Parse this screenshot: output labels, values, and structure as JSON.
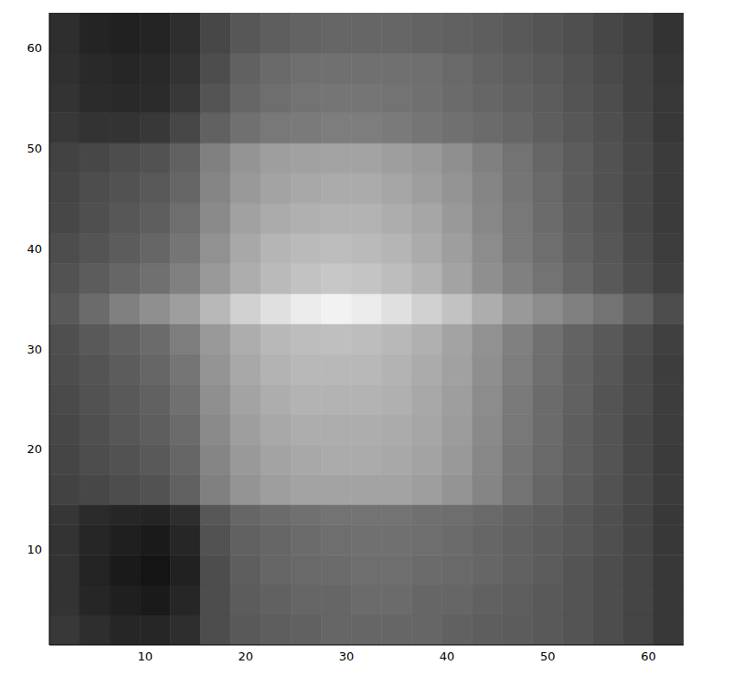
{
  "chart_data": {
    "type": "heatmap",
    "color": "gray",
    "grid": false,
    "xlim": [
      0.5,
      63.5
    ],
    "ylim": [
      0.5,
      63.5
    ],
    "xticks": [
      10,
      20,
      30,
      40,
      50,
      60
    ],
    "yticks": [
      10,
      20,
      30,
      40,
      50,
      60
    ],
    "zlim": [
      0,
      1
    ],
    "x_edges": [
      0.5,
      3.5,
      6.5,
      9.5,
      12.5,
      15.5,
      18.5,
      21.5,
      24.5,
      27.5,
      30.5,
      33.5,
      36.5,
      39.5,
      42.5,
      45.5,
      48.5,
      51.5,
      54.5,
      57.5,
      60.5,
      63.5
    ],
    "y_edges": [
      0.5,
      3.5,
      6.5,
      9.5,
      12.5,
      14.5,
      17.5,
      20.5,
      23.5,
      26.5,
      29.5,
      32.5,
      35.5,
      38.5,
      41.5,
      44.5,
      47.5,
      50.5,
      53.5,
      56.5,
      59.5,
      63.5
    ],
    "cells": [
      [
        0.22,
        0.18,
        0.15,
        0.15,
        0.18,
        0.3,
        0.35,
        0.37,
        0.38,
        0.4,
        0.4,
        0.4,
        0.4,
        0.38,
        0.37,
        0.36,
        0.35,
        0.33,
        0.3,
        0.27,
        0.22
      ],
      [
        0.2,
        0.15,
        0.12,
        0.1,
        0.15,
        0.3,
        0.36,
        0.38,
        0.4,
        0.4,
        0.42,
        0.42,
        0.4,
        0.4,
        0.38,
        0.37,
        0.35,
        0.33,
        0.3,
        0.27,
        0.22
      ],
      [
        0.2,
        0.14,
        0.1,
        0.08,
        0.13,
        0.3,
        0.37,
        0.4,
        0.41,
        0.42,
        0.43,
        0.43,
        0.42,
        0.41,
        0.4,
        0.38,
        0.36,
        0.33,
        0.3,
        0.27,
        0.22
      ],
      [
        0.2,
        0.15,
        0.12,
        0.1,
        0.15,
        0.32,
        0.38,
        0.4,
        0.42,
        0.43,
        0.44,
        0.44,
        0.43,
        0.42,
        0.4,
        0.38,
        0.36,
        0.34,
        0.31,
        0.27,
        0.22
      ],
      [
        0.21,
        0.17,
        0.15,
        0.14,
        0.18,
        0.34,
        0.4,
        0.42,
        0.44,
        0.45,
        0.45,
        0.45,
        0.44,
        0.43,
        0.41,
        0.39,
        0.37,
        0.34,
        0.31,
        0.27,
        0.22
      ],
      [
        0.26,
        0.28,
        0.3,
        0.32,
        0.38,
        0.5,
        0.58,
        0.62,
        0.64,
        0.64,
        0.64,
        0.64,
        0.62,
        0.58,
        0.52,
        0.45,
        0.4,
        0.36,
        0.32,
        0.28,
        0.23
      ],
      [
        0.27,
        0.3,
        0.32,
        0.35,
        0.4,
        0.52,
        0.6,
        0.64,
        0.66,
        0.67,
        0.67,
        0.66,
        0.64,
        0.6,
        0.53,
        0.46,
        0.41,
        0.37,
        0.33,
        0.28,
        0.23
      ],
      [
        0.28,
        0.31,
        0.34,
        0.37,
        0.42,
        0.54,
        0.62,
        0.66,
        0.68,
        0.68,
        0.68,
        0.67,
        0.65,
        0.61,
        0.54,
        0.47,
        0.42,
        0.37,
        0.33,
        0.28,
        0.24
      ],
      [
        0.29,
        0.32,
        0.35,
        0.38,
        0.44,
        0.56,
        0.64,
        0.68,
        0.7,
        0.7,
        0.7,
        0.69,
        0.66,
        0.62,
        0.55,
        0.48,
        0.42,
        0.38,
        0.33,
        0.29,
        0.24
      ],
      [
        0.3,
        0.33,
        0.36,
        0.4,
        0.46,
        0.58,
        0.66,
        0.7,
        0.72,
        0.72,
        0.72,
        0.7,
        0.67,
        0.63,
        0.56,
        0.49,
        0.43,
        0.38,
        0.34,
        0.29,
        0.24
      ],
      [
        0.31,
        0.35,
        0.38,
        0.42,
        0.49,
        0.6,
        0.68,
        0.72,
        0.74,
        0.75,
        0.74,
        0.72,
        0.69,
        0.64,
        0.57,
        0.5,
        0.44,
        0.39,
        0.35,
        0.3,
        0.25
      ],
      [
        0.35,
        0.42,
        0.5,
        0.56,
        0.62,
        0.72,
        0.82,
        0.88,
        0.92,
        0.95,
        0.92,
        0.88,
        0.82,
        0.76,
        0.68,
        0.6,
        0.55,
        0.5,
        0.45,
        0.38,
        0.3
      ],
      [
        0.32,
        0.36,
        0.4,
        0.44,
        0.5,
        0.6,
        0.68,
        0.73,
        0.76,
        0.78,
        0.77,
        0.74,
        0.7,
        0.64,
        0.56,
        0.5,
        0.45,
        0.4,
        0.35,
        0.3,
        0.25
      ],
      [
        0.3,
        0.33,
        0.36,
        0.4,
        0.46,
        0.57,
        0.66,
        0.71,
        0.73,
        0.74,
        0.73,
        0.71,
        0.67,
        0.62,
        0.55,
        0.48,
        0.43,
        0.38,
        0.34,
        0.29,
        0.24
      ],
      [
        0.28,
        0.31,
        0.34,
        0.37,
        0.43,
        0.54,
        0.63,
        0.67,
        0.69,
        0.7,
        0.7,
        0.68,
        0.65,
        0.6,
        0.53,
        0.47,
        0.42,
        0.37,
        0.33,
        0.28,
        0.23
      ],
      [
        0.27,
        0.3,
        0.32,
        0.35,
        0.4,
        0.52,
        0.6,
        0.64,
        0.66,
        0.67,
        0.67,
        0.65,
        0.62,
        0.58,
        0.52,
        0.46,
        0.41,
        0.36,
        0.32,
        0.28,
        0.23
      ],
      [
        0.26,
        0.28,
        0.3,
        0.32,
        0.38,
        0.5,
        0.58,
        0.62,
        0.63,
        0.64,
        0.64,
        0.62,
        0.6,
        0.56,
        0.5,
        0.45,
        0.4,
        0.36,
        0.32,
        0.28,
        0.23
      ],
      [
        0.22,
        0.2,
        0.2,
        0.22,
        0.28,
        0.38,
        0.44,
        0.47,
        0.48,
        0.49,
        0.49,
        0.48,
        0.46,
        0.44,
        0.42,
        0.4,
        0.37,
        0.34,
        0.31,
        0.27,
        0.22
      ],
      [
        0.2,
        0.17,
        0.16,
        0.17,
        0.22,
        0.33,
        0.4,
        0.43,
        0.45,
        0.46,
        0.46,
        0.45,
        0.44,
        0.42,
        0.4,
        0.38,
        0.36,
        0.33,
        0.3,
        0.26,
        0.22
      ],
      [
        0.19,
        0.16,
        0.15,
        0.16,
        0.2,
        0.3,
        0.38,
        0.41,
        0.43,
        0.44,
        0.44,
        0.44,
        0.43,
        0.41,
        0.39,
        0.37,
        0.35,
        0.32,
        0.29,
        0.26,
        0.21
      ],
      [
        0.18,
        0.14,
        0.13,
        0.14,
        0.18,
        0.28,
        0.34,
        0.37,
        0.39,
        0.4,
        0.4,
        0.4,
        0.39,
        0.38,
        0.37,
        0.35,
        0.33,
        0.31,
        0.28,
        0.25,
        0.2
      ]
    ]
  }
}
